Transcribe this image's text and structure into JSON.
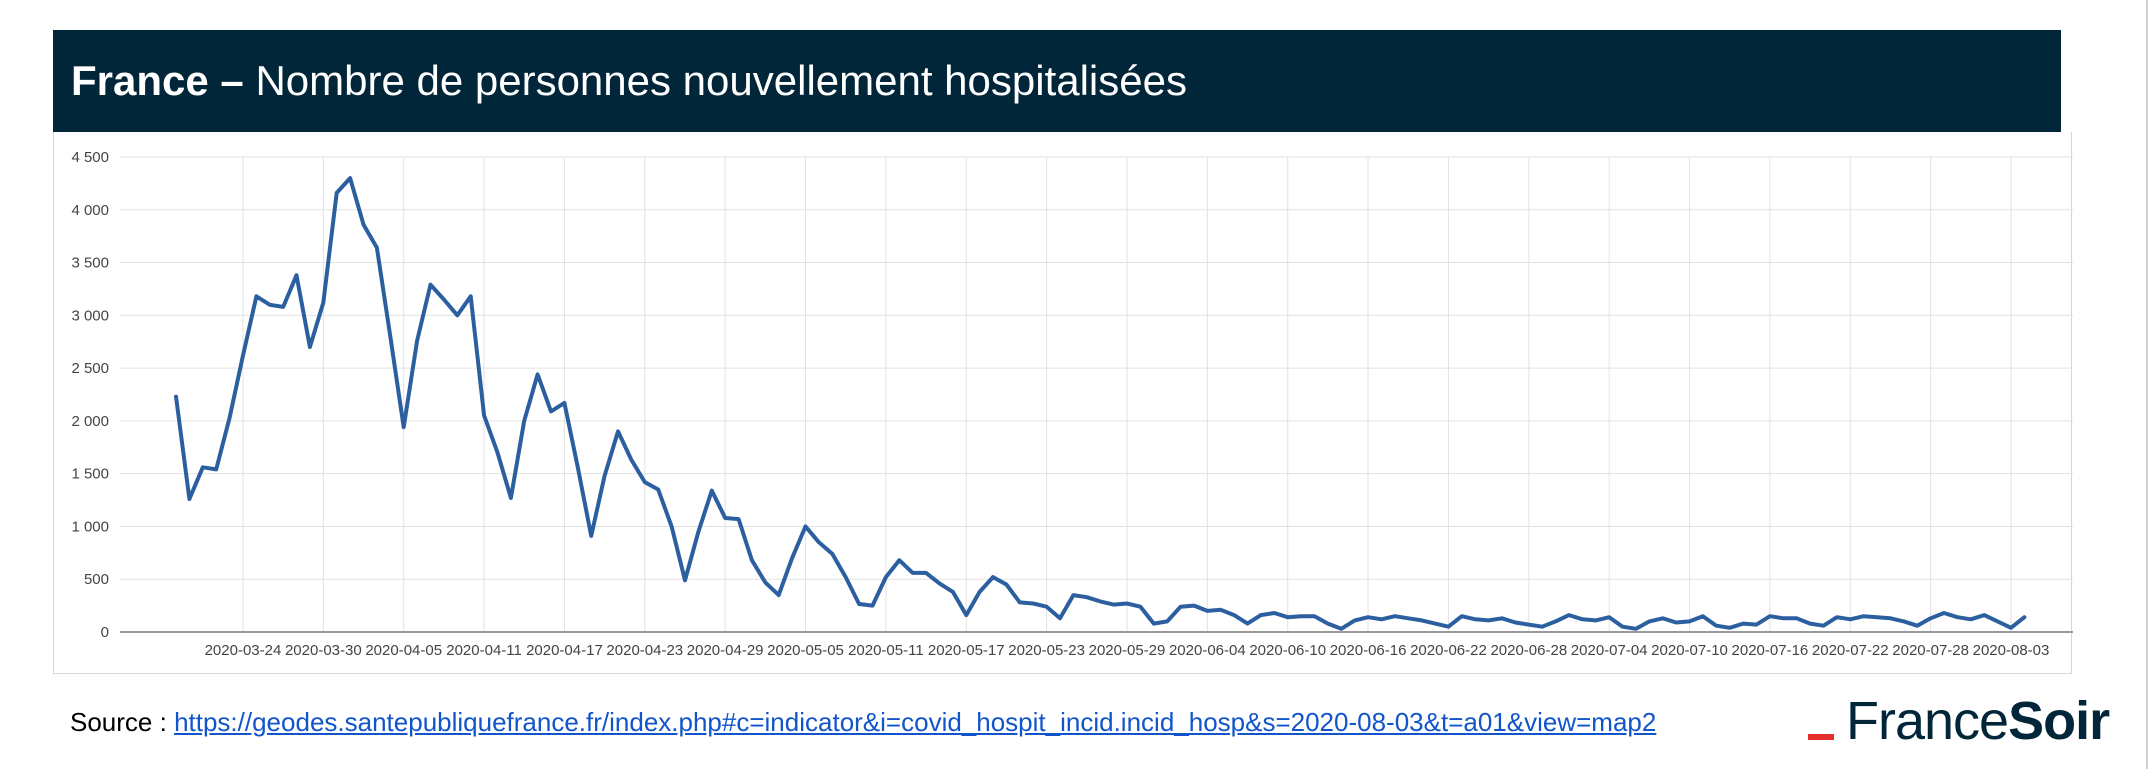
{
  "header": {
    "country": "France",
    "separator": " – ",
    "title": "Nombre de personnes nouvellement hospitalisées"
  },
  "source": {
    "label": "Source : ",
    "url": "https://geodes.santepubliquefrance.fr/index.php#c=indicator&i=covid_hospit_incid.incid_hosp&s=2020-08-03&t=a01&view=map2"
  },
  "logo": {
    "part1": "France",
    "part2": "Soir"
  },
  "colors": {
    "header_bg": "#022639",
    "line": "#2c5fa0",
    "logo_dash": "#e52e2e",
    "link": "#1155cc"
  },
  "chart_data": {
    "type": "line",
    "title": "",
    "xlabel": "",
    "ylabel": "",
    "ylim": [
      0,
      4500
    ],
    "yticks": [
      0,
      500,
      1000,
      1500,
      2000,
      2500,
      3000,
      3500,
      4000,
      4500
    ],
    "ytick_labels": [
      "0",
      "500",
      "1 000",
      "1 500",
      "2 000",
      "2 500",
      "3 000",
      "3 500",
      "4 000",
      "4 500"
    ],
    "x_start": "2020-03-19",
    "x_end": "2020-08-03",
    "x_ticks": [
      "2020-03-24",
      "2020-03-30",
      "2020-04-05",
      "2020-04-11",
      "2020-04-17",
      "2020-04-23",
      "2020-04-29",
      "2020-05-05",
      "2020-05-11",
      "2020-05-17",
      "2020-05-23",
      "2020-05-29",
      "2020-06-04",
      "2020-06-10",
      "2020-06-16",
      "2020-06-22",
      "2020-06-28",
      "2020-07-04",
      "2020-07-10",
      "2020-07-16",
      "2020-07-22",
      "2020-07-28",
      "2020-08-03"
    ],
    "grid": true,
    "series": [
      {
        "name": "",
        "values": [
          2230,
          1260,
          1560,
          1540,
          2030,
          2620,
          3180,
          3100,
          3080,
          3380,
          2700,
          3120,
          4160,
          4300,
          3860,
          3640,
          2800,
          1940,
          2760,
          3290,
          3150,
          3000,
          3180,
          2050,
          1700,
          1270,
          2000,
          2440,
          2090,
          2170,
          1560,
          910,
          1480,
          1900,
          1630,
          1420,
          1350,
          1000,
          490,
          950,
          1340,
          1080,
          1070,
          680,
          470,
          350,
          700,
          1000,
          850,
          740,
          520,
          265,
          250,
          520,
          680,
          560,
          560,
          460,
          380,
          160,
          380,
          520,
          450,
          280,
          270,
          240,
          130,
          350,
          330,
          290,
          260,
          270,
          240,
          80,
          100,
          240,
          250,
          200,
          210,
          160,
          80,
          160,
          180,
          140,
          150,
          150,
          80,
          30,
          110,
          140,
          120,
          150,
          130,
          110,
          80,
          50,
          150,
          120,
          110,
          130,
          90,
          70,
          50,
          100,
          160,
          120,
          110,
          140,
          50,
          30,
          100,
          130,
          90,
          100,
          150,
          60,
          40,
          80,
          70,
          150,
          130,
          130,
          80,
          60,
          140,
          120,
          150,
          140,
          130,
          100,
          60,
          130,
          180,
          140,
          120,
          160,
          100,
          40,
          140
        ]
      }
    ]
  }
}
